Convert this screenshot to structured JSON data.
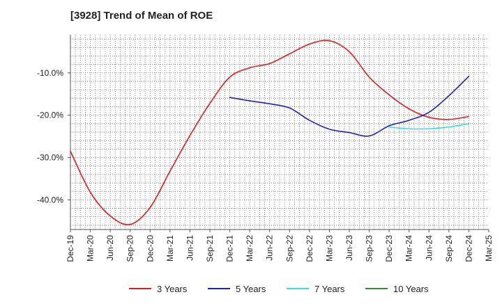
{
  "chart_data": {
    "type": "line",
    "title": "[3928]  Trend of Mean of ROE",
    "x": [
      "Dec-19",
      "Mar-20",
      "Jun-20",
      "Sep-20",
      "Dec-20",
      "Mar-21",
      "Jun-21",
      "Sep-21",
      "Dec-21",
      "Mar-22",
      "Jun-22",
      "Sep-22",
      "Dec-22",
      "Mar-23",
      "Jun-23",
      "Sep-23",
      "Dec-23",
      "Mar-24",
      "Jun-24",
      "Sep-24",
      "Dec-24",
      "Mar-25"
    ],
    "y_ticks": [
      -10,
      -20,
      -30,
      -40
    ],
    "y_tick_labels": [
      "-10.0%",
      "-20.0%",
      "-30.0%",
      "-40.0%"
    ],
    "ylim": [
      -47,
      -1
    ],
    "grid": true,
    "legend_position": "bottom",
    "colors": {
      "3 Years": "#e31a1c",
      "5 Years": "#1f1fbf",
      "7 Years": "#33e0e8",
      "10 Years": "#2e8b2e"
    },
    "series": [
      {
        "name": "3 Years",
        "color": "#e31a1c",
        "values": [
          -28.5,
          -38.2,
          -43.8,
          -45.8,
          -41.8,
          -33.2,
          -24.8,
          -17.2,
          -11.0,
          -8.8,
          -7.8,
          -5.5,
          -3.2,
          -2.4,
          -5.0,
          -11.0,
          -15.2,
          -18.5,
          -20.5,
          -21.0,
          -20.3,
          null
        ]
      },
      {
        "name": "5 Years",
        "color": "#1f1fbf",
        "values": [
          null,
          null,
          null,
          null,
          null,
          null,
          null,
          null,
          -15.8,
          -16.6,
          -17.3,
          -18.3,
          -21.2,
          -23.3,
          -24.1,
          -24.9,
          -22.5,
          -21.2,
          -19.3,
          -15.4,
          -10.8,
          null
        ]
      },
      {
        "name": "7 Years",
        "color": "#33e0e8",
        "values": [
          null,
          null,
          null,
          null,
          null,
          null,
          null,
          null,
          null,
          null,
          null,
          null,
          null,
          null,
          null,
          null,
          -22.8,
          -23.2,
          -23.2,
          -22.8,
          -22.0,
          null
        ]
      },
      {
        "name": "10 Years",
        "color": "#2e8b2e",
        "values": [
          null,
          null,
          null,
          null,
          null,
          null,
          null,
          null,
          null,
          null,
          null,
          null,
          null,
          null,
          null,
          null,
          null,
          null,
          null,
          null,
          null,
          null
        ]
      }
    ]
  }
}
